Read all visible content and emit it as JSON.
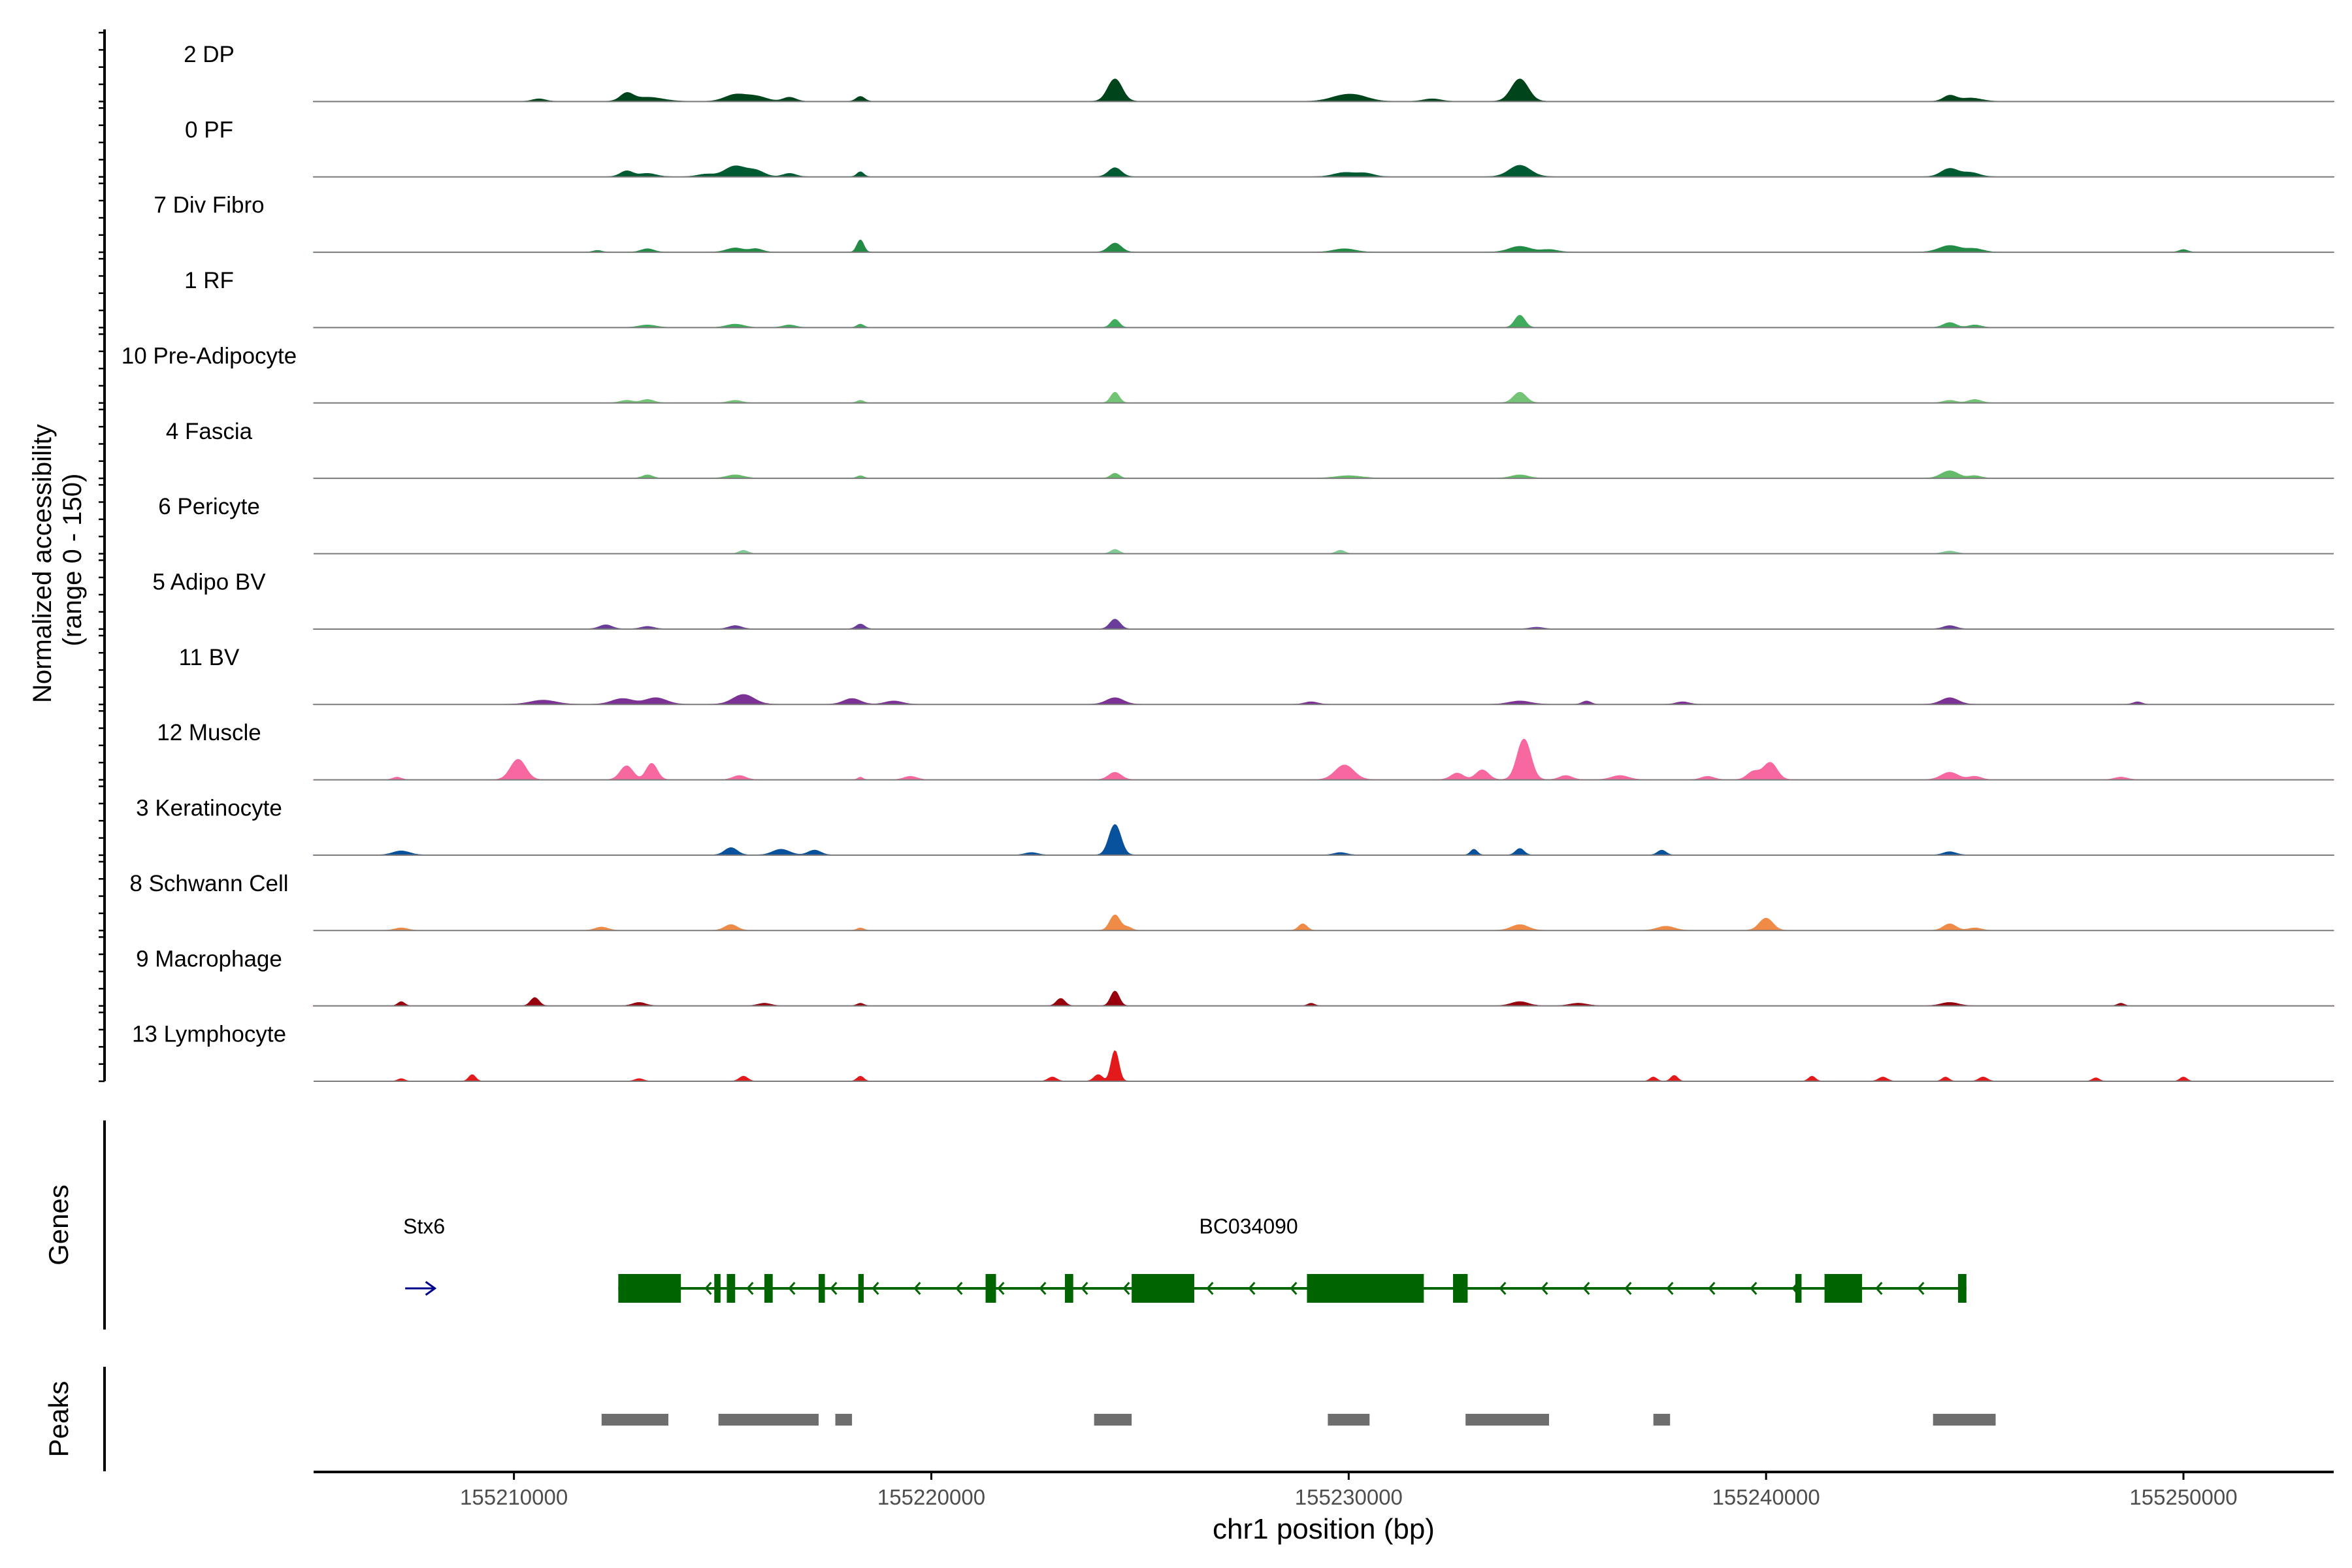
{
  "chart_data": {
    "type": "area",
    "title": "",
    "ylabel_line1": "Normalized accessibility",
    "ylabel_line2": "(range 0 - 150)",
    "xlabel": "chr1 position (bp)",
    "xlim": [
      155205200,
      155253600
    ],
    "ylim": [
      0,
      150
    ],
    "x_ticks": [
      155210000,
      155220000,
      155230000,
      155240000,
      155250000
    ],
    "x_tick_labels": [
      "155210000",
      "155220000",
      "155230000",
      "155240000",
      "155250000"
    ],
    "tracks": [
      {
        "name": "2 DP",
        "color": "#00441b",
        "peaks": [
          [
            155212700,
            150,
            18
          ],
          [
            155213200,
            350,
            10
          ],
          [
            155215300,
            250,
            16
          ],
          [
            155215800,
            250,
            12
          ],
          [
            155216600,
            150,
            10
          ],
          [
            155218300,
            100,
            12
          ],
          [
            155224400,
            170,
            55
          ],
          [
            155229800,
            300,
            10
          ],
          [
            155230200,
            300,
            12
          ],
          [
            155234100,
            200,
            55
          ],
          [
            155244400,
            150,
            14
          ],
          [
            155244900,
            250,
            8
          ],
          [
            155210600,
            150,
            6
          ],
          [
            155232000,
            200,
            6
          ]
        ]
      },
      {
        "name": "0 PF",
        "color": "#005a32",
        "peaks": [
          [
            155212700,
            150,
            14
          ],
          [
            155213200,
            200,
            8
          ],
          [
            155215300,
            250,
            26
          ],
          [
            155215800,
            200,
            14
          ],
          [
            155216600,
            150,
            8
          ],
          [
            155218300,
            80,
            12
          ],
          [
            155224400,
            150,
            22
          ],
          [
            155229900,
            250,
            10
          ],
          [
            155230400,
            200,
            8
          ],
          [
            155234100,
            250,
            28
          ],
          [
            155244400,
            200,
            20
          ],
          [
            155244900,
            200,
            10
          ],
          [
            155214600,
            200,
            6
          ]
        ]
      },
      {
        "name": "7 Div Fibro",
        "color": "#238b45",
        "peaks": [
          [
            155213200,
            150,
            8
          ],
          [
            155215300,
            200,
            10
          ],
          [
            155215800,
            150,
            8
          ],
          [
            155218300,
            80,
            30
          ],
          [
            155224400,
            150,
            22
          ],
          [
            155229900,
            250,
            8
          ],
          [
            155234100,
            250,
            14
          ],
          [
            155234800,
            200,
            6
          ],
          [
            155244400,
            250,
            16
          ],
          [
            155245000,
            200,
            8
          ],
          [
            155250000,
            100,
            6
          ],
          [
            155212000,
            100,
            4
          ]
        ]
      },
      {
        "name": "1 RF",
        "color": "#41ab5d",
        "peaks": [
          [
            155213200,
            200,
            6
          ],
          [
            155215300,
            200,
            8
          ],
          [
            155216600,
            150,
            6
          ],
          [
            155218300,
            80,
            8
          ],
          [
            155224400,
            100,
            20
          ],
          [
            155234100,
            120,
            30
          ],
          [
            155244400,
            150,
            12
          ],
          [
            155245000,
            150,
            6
          ]
        ]
      },
      {
        "name": "10 Pre-Adipocyte",
        "color": "#74c476",
        "peaks": [
          [
            155212700,
            150,
            6
          ],
          [
            155213200,
            150,
            8
          ],
          [
            155215300,
            150,
            6
          ],
          [
            155218300,
            80,
            6
          ],
          [
            155224400,
            100,
            26
          ],
          [
            155234100,
            150,
            26
          ],
          [
            155244400,
            150,
            6
          ],
          [
            155245000,
            150,
            8
          ]
        ]
      },
      {
        "name": "4 Fascia",
        "color": "#66bb6a",
        "peaks": [
          [
            155213200,
            120,
            8
          ],
          [
            155215300,
            200,
            8
          ],
          [
            155218300,
            80,
            6
          ],
          [
            155224400,
            100,
            12
          ],
          [
            155230000,
            300,
            6
          ],
          [
            155234100,
            200,
            8
          ],
          [
            155244400,
            200,
            18
          ],
          [
            155245000,
            150,
            6
          ]
        ]
      },
      {
        "name": "6 Pericyte",
        "color": "#81c995",
        "peaks": [
          [
            155215500,
            100,
            8
          ],
          [
            155224400,
            100,
            10
          ],
          [
            155229800,
            100,
            8
          ],
          [
            155244400,
            150,
            6
          ]
        ]
      },
      {
        "name": "5 Adipo BV",
        "color": "#6a3d9a",
        "peaks": [
          [
            155212200,
            150,
            10
          ],
          [
            155213200,
            150,
            6
          ],
          [
            155215300,
            150,
            8
          ],
          [
            155218300,
            100,
            12
          ],
          [
            155224400,
            120,
            24
          ],
          [
            155244400,
            150,
            8
          ],
          [
            155234500,
            150,
            4
          ]
        ]
      },
      {
        "name": "11 BV",
        "color": "#7b3294",
        "peaks": [
          [
            155210700,
            300,
            10
          ],
          [
            155212600,
            250,
            14
          ],
          [
            155213400,
            250,
            16
          ],
          [
            155215500,
            250,
            24
          ],
          [
            155218100,
            200,
            14
          ],
          [
            155219100,
            200,
            8
          ],
          [
            155224400,
            200,
            16
          ],
          [
            155229100,
            150,
            6
          ],
          [
            155234100,
            250,
            8
          ],
          [
            155235700,
            100,
            8
          ],
          [
            155238000,
            150,
            6
          ],
          [
            155244400,
            200,
            16
          ],
          [
            155248900,
            100,
            6
          ]
        ]
      },
      {
        "name": "12 Muscle",
        "color": "#f768a1",
        "peaks": [
          [
            155210100,
            180,
            50
          ],
          [
            155212700,
            150,
            34
          ],
          [
            155213300,
            130,
            40
          ],
          [
            155215400,
            150,
            10
          ],
          [
            155218300,
            60,
            6
          ],
          [
            155219500,
            150,
            8
          ],
          [
            155224400,
            150,
            18
          ],
          [
            155229900,
            220,
            36
          ],
          [
            155232600,
            150,
            16
          ],
          [
            155233200,
            150,
            24
          ],
          [
            155234200,
            160,
            100
          ],
          [
            155235200,
            150,
            10
          ],
          [
            155236500,
            200,
            10
          ],
          [
            155238600,
            150,
            8
          ],
          [
            155239700,
            150,
            20
          ],
          [
            155240100,
            160,
            42
          ],
          [
            155244400,
            200,
            18
          ],
          [
            155245000,
            150,
            8
          ],
          [
            155248500,
            150,
            6
          ],
          [
            155207200,
            100,
            6
          ]
        ]
      },
      {
        "name": "3 Keratinocyte",
        "color": "#08519c",
        "peaks": [
          [
            155207300,
            200,
            10
          ],
          [
            155215200,
            150,
            18
          ],
          [
            155216400,
            200,
            14
          ],
          [
            155217200,
            150,
            12
          ],
          [
            155224400,
            140,
            75
          ],
          [
            155229800,
            150,
            6
          ],
          [
            155233000,
            80,
            14
          ],
          [
            155234100,
            100,
            16
          ],
          [
            155237500,
            100,
            12
          ],
          [
            155222400,
            150,
            6
          ],
          [
            155244400,
            150,
            8
          ]
        ]
      },
      {
        "name": "8 Schwann Cell",
        "color": "#ef8a47",
        "peaks": [
          [
            155207300,
            150,
            6
          ],
          [
            155212100,
            150,
            8
          ],
          [
            155215200,
            150,
            14
          ],
          [
            155218300,
            80,
            6
          ],
          [
            155224400,
            120,
            38
          ],
          [
            155228900,
            100,
            16
          ],
          [
            155234100,
            200,
            14
          ],
          [
            155237600,
            200,
            10
          ],
          [
            155240000,
            160,
            30
          ],
          [
            155244400,
            150,
            16
          ],
          [
            155245000,
            150,
            6
          ],
          [
            155224700,
            100,
            8
          ]
        ]
      },
      {
        "name": "9 Macrophage",
        "color": "#99000d",
        "peaks": [
          [
            155207300,
            80,
            10
          ],
          [
            155210500,
            100,
            20
          ],
          [
            155213000,
            150,
            8
          ],
          [
            155216000,
            150,
            6
          ],
          [
            155223100,
            100,
            18
          ],
          [
            155224400,
            100,
            36
          ],
          [
            155229100,
            80,
            6
          ],
          [
            155234100,
            200,
            10
          ],
          [
            155235500,
            200,
            6
          ],
          [
            155244400,
            200,
            8
          ],
          [
            155248500,
            80,
            6
          ],
          [
            155218300,
            80,
            6
          ]
        ]
      },
      {
        "name": "13 Lymphocyte",
        "color": "#e31a1c",
        "peaks": [
          [
            155209000,
            80,
            16
          ],
          [
            155207300,
            80,
            6
          ],
          [
            155215500,
            100,
            12
          ],
          [
            155218300,
            80,
            12
          ],
          [
            155222900,
            100,
            10
          ],
          [
            155224000,
            100,
            16
          ],
          [
            155224400,
            90,
            75
          ],
          [
            155237300,
            80,
            10
          ],
          [
            155237800,
            80,
            14
          ],
          [
            155241100,
            80,
            12
          ],
          [
            155242800,
            100,
            10
          ],
          [
            155244300,
            80,
            10
          ],
          [
            155245200,
            100,
            10
          ],
          [
            155247900,
            80,
            8
          ],
          [
            155250000,
            80,
            10
          ],
          [
            155213000,
            100,
            6
          ]
        ]
      }
    ],
    "genes_label": "Genes",
    "genes": [
      {
        "name": "Stx6",
        "strand": "+",
        "start": 155207300,
        "end": 155208200,
        "exons": []
      },
      {
        "name": "BC034090",
        "strand": "-",
        "start": 155212500,
        "end": 155244800,
        "exons": [
          [
            155212500,
            155214000
          ],
          [
            155214800,
            155214950
          ],
          [
            155215100,
            155215300
          ],
          [
            155216000,
            155216200
          ],
          [
            155217300,
            155217450
          ],
          [
            155218250,
            155218380
          ],
          [
            155221300,
            155221550
          ],
          [
            155223200,
            155223400
          ],
          [
            155224800,
            155226300
          ],
          [
            155229000,
            155231800
          ],
          [
            155232500,
            155232850
          ],
          [
            155240700,
            155240850
          ],
          [
            155241400,
            155242300
          ],
          [
            155244600,
            155244800
          ]
        ]
      }
    ],
    "peaks_label": "Peaks",
    "peaks": [
      [
        155212100,
        155213700
      ],
      [
        155214900,
        155217300
      ],
      [
        155217700,
        155218100
      ],
      [
        155223900,
        155224800
      ],
      [
        155229500,
        155230500
      ],
      [
        155232800,
        155234800
      ],
      [
        155237300,
        155237700
      ],
      [
        155244000,
        155245500
      ]
    ]
  }
}
